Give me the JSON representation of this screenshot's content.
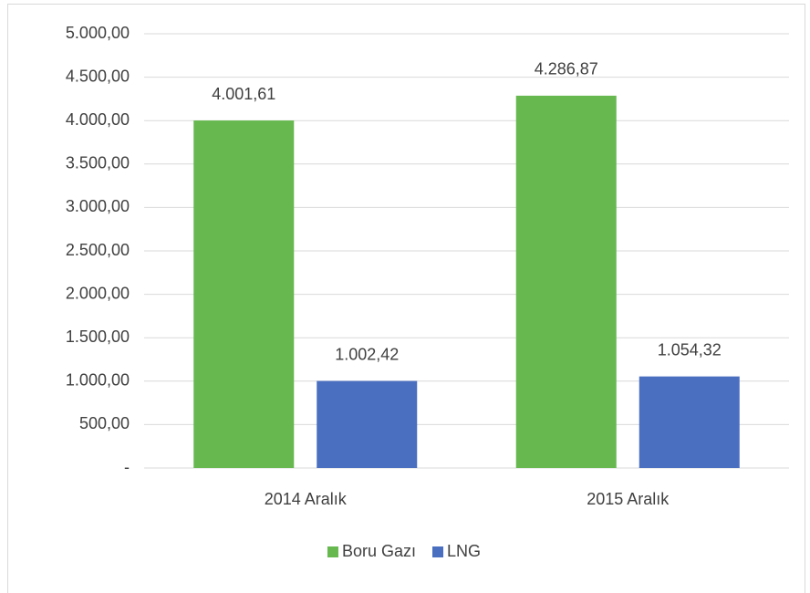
{
  "chart_data": {
    "type": "bar",
    "categories": [
      "2014 Aralık",
      "2015 Aralık"
    ],
    "series": [
      {
        "name": "Boru Gazı",
        "color": "#66b84f",
        "values": [
          4001.61,
          4286.87
        ],
        "value_labels": [
          "4.001,61",
          "4.286,87"
        ]
      },
      {
        "name": "LNG",
        "color": "#4a6fc0",
        "values": [
          1002.42,
          1054.32
        ],
        "value_labels": [
          "1.002,42",
          "1.054,32"
        ]
      }
    ],
    "ylim": [
      0,
      5000
    ],
    "yticks": [
      {
        "value": 0,
        "label": "-"
      },
      {
        "value": 500,
        "label": "500,00"
      },
      {
        "value": 1000,
        "label": "1.000,00"
      },
      {
        "value": 1500,
        "label": "1.500,00"
      },
      {
        "value": 2000,
        "label": "2.000,00"
      },
      {
        "value": 2500,
        "label": "2.500,00"
      },
      {
        "value": 3000,
        "label": "3.000,00"
      },
      {
        "value": 3500,
        "label": "3.500,00"
      },
      {
        "value": 4000,
        "label": "4.000,00"
      },
      {
        "value": 4500,
        "label": "4.500,00"
      },
      {
        "value": 5000,
        "label": "5.000,00"
      }
    ],
    "grid": true,
    "legend": "bottom"
  }
}
